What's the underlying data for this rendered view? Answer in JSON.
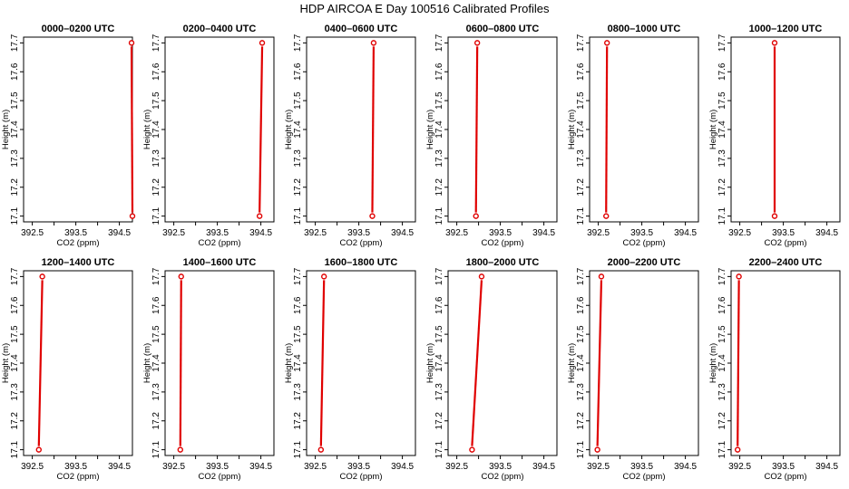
{
  "figure": {
    "title": "HDP AIRCOA E  Day 100516  Calibrated Profiles"
  },
  "chart_data": [
    {
      "type": "line",
      "title": "0000–0200 UTC",
      "xlabel": "CO2 (ppm)",
      "ylabel": "Height (m)",
      "xlim": [
        392.3,
        394.8
      ],
      "ylim": [
        17.08,
        17.72
      ],
      "xticks": [
        "392.5",
        "393.5",
        "394.5"
      ],
      "yticks": [
        "17.1",
        "17.2",
        "17.3",
        "17.4",
        "17.5",
        "17.6",
        "17.7"
      ],
      "series": [
        {
          "x": [
            394.8,
            394.78
          ],
          "y": [
            17.1,
            17.7
          ]
        }
      ]
    },
    {
      "type": "line",
      "title": "0200–0400 UTC",
      "xlabel": "CO2 (ppm)",
      "ylabel": "Height (m)",
      "xlim": [
        392.3,
        394.8
      ],
      "ylim": [
        17.08,
        17.72
      ],
      "xticks": [
        "392.5",
        "393.5",
        "394.5"
      ],
      "yticks": [
        "17.1",
        "17.2",
        "17.3",
        "17.4",
        "17.5",
        "17.6",
        "17.7"
      ],
      "series": [
        {
          "x": [
            394.47,
            394.53
          ],
          "y": [
            17.1,
            17.7
          ]
        }
      ]
    },
    {
      "type": "line",
      "title": "0400–0600 UTC",
      "xlabel": "CO2 (ppm)",
      "ylabel": "Height (m)",
      "xlim": [
        392.3,
        394.8
      ],
      "ylim": [
        17.08,
        17.72
      ],
      "xticks": [
        "392.5",
        "393.5",
        "394.5"
      ],
      "yticks": [
        "17.1",
        "17.2",
        "17.3",
        "17.4",
        "17.5",
        "17.6",
        "17.7"
      ],
      "series": [
        {
          "x": [
            393.81,
            393.84
          ],
          "y": [
            17.1,
            17.7
          ]
        }
      ]
    },
    {
      "type": "line",
      "title": "0600–0800 UTC",
      "xlabel": "CO2 (ppm)",
      "ylabel": "Height (m)",
      "xlim": [
        392.3,
        394.8
      ],
      "ylim": [
        17.08,
        17.72
      ],
      "xticks": [
        "392.5",
        "393.5",
        "394.5"
      ],
      "yticks": [
        "17.1",
        "17.2",
        "17.3",
        "17.4",
        "17.5",
        "17.6",
        "17.7"
      ],
      "series": [
        {
          "x": [
            392.94,
            392.97
          ],
          "y": [
            17.1,
            17.7
          ]
        }
      ]
    },
    {
      "type": "line",
      "title": "0800–1000 UTC",
      "xlabel": "CO2 (ppm)",
      "ylabel": "Height (m)",
      "xlim": [
        392.3,
        394.8
      ],
      "ylim": [
        17.08,
        17.72
      ],
      "xticks": [
        "392.5",
        "393.5",
        "394.5"
      ],
      "yticks": [
        "17.1",
        "17.2",
        "17.3",
        "17.4",
        "17.5",
        "17.6",
        "17.7"
      ],
      "series": [
        {
          "x": [
            392.68,
            392.7
          ],
          "y": [
            17.1,
            17.7
          ]
        }
      ]
    },
    {
      "type": "line",
      "title": "1000–1200 UTC",
      "xlabel": "CO2 (ppm)",
      "ylabel": "Height (m)",
      "xlim": [
        392.3,
        394.8
      ],
      "ylim": [
        17.08,
        17.72
      ],
      "xticks": [
        "392.5",
        "393.5",
        "394.5"
      ],
      "yticks": [
        "17.1",
        "17.2",
        "17.3",
        "17.4",
        "17.5",
        "17.6",
        "17.7"
      ],
      "series": [
        {
          "x": [
            393.3,
            393.3
          ],
          "y": [
            17.1,
            17.7
          ]
        }
      ]
    },
    {
      "type": "line",
      "title": "1200–1400 UTC",
      "xlabel": "CO2 (ppm)",
      "ylabel": "Height (m)",
      "xlim": [
        392.3,
        394.8
      ],
      "ylim": [
        17.08,
        17.72
      ],
      "xticks": [
        "392.5",
        "393.5",
        "394.5"
      ],
      "yticks": [
        "17.1",
        "17.2",
        "17.3",
        "17.4",
        "17.5",
        "17.6",
        "17.7"
      ],
      "series": [
        {
          "x": [
            392.65,
            392.73
          ],
          "y": [
            17.1,
            17.7
          ]
        }
      ]
    },
    {
      "type": "line",
      "title": "1400–1600 UTC",
      "xlabel": "CO2 (ppm)",
      "ylabel": "Height (m)",
      "xlim": [
        392.3,
        394.8
      ],
      "ylim": [
        17.08,
        17.72
      ],
      "xticks": [
        "392.5",
        "393.5",
        "394.5"
      ],
      "yticks": [
        "17.1",
        "17.2",
        "17.3",
        "17.4",
        "17.5",
        "17.6",
        "17.7"
      ],
      "series": [
        {
          "x": [
            392.65,
            392.67
          ],
          "y": [
            17.1,
            17.7
          ]
        }
      ]
    },
    {
      "type": "line",
      "title": "1600–1800 UTC",
      "xlabel": "CO2 (ppm)",
      "ylabel": "Height (m)",
      "xlim": [
        392.3,
        394.8
      ],
      "ylim": [
        17.08,
        17.72
      ],
      "xticks": [
        "392.5",
        "393.5",
        "394.5"
      ],
      "yticks": [
        "17.1",
        "17.2",
        "17.3",
        "17.4",
        "17.5",
        "17.6",
        "17.7"
      ],
      "series": [
        {
          "x": [
            392.63,
            392.7
          ],
          "y": [
            17.1,
            17.7
          ]
        }
      ]
    },
    {
      "type": "line",
      "title": "1800–2000 UTC",
      "xlabel": "CO2 (ppm)",
      "ylabel": "Height (m)",
      "xlim": [
        392.3,
        394.8
      ],
      "ylim": [
        17.08,
        17.72
      ],
      "xticks": [
        "392.5",
        "393.5",
        "394.5"
      ],
      "yticks": [
        "17.1",
        "17.2",
        "17.3",
        "17.4",
        "17.5",
        "17.6",
        "17.7"
      ],
      "series": [
        {
          "x": [
            392.85,
            393.07
          ],
          "y": [
            17.1,
            17.7
          ]
        }
      ]
    },
    {
      "type": "line",
      "title": "2000–2200 UTC",
      "xlabel": "CO2 (ppm)",
      "ylabel": "Height (m)",
      "xlim": [
        392.3,
        394.8
      ],
      "ylim": [
        17.08,
        17.72
      ],
      "xticks": [
        "392.5",
        "393.5",
        "394.5"
      ],
      "yticks": [
        "17.1",
        "17.2",
        "17.3",
        "17.4",
        "17.5",
        "17.6",
        "17.7"
      ],
      "series": [
        {
          "x": [
            392.48,
            392.57
          ],
          "y": [
            17.1,
            17.7
          ]
        }
      ]
    },
    {
      "type": "line",
      "title": "2200–2400 UTC",
      "xlabel": "CO2 (ppm)",
      "ylabel": "Height (m)",
      "xlim": [
        392.3,
        394.8
      ],
      "ylim": [
        17.08,
        17.72
      ],
      "xticks": [
        "392.5",
        "393.5",
        "394.5"
      ],
      "yticks": [
        "17.1",
        "17.2",
        "17.3",
        "17.4",
        "17.5",
        "17.6",
        "17.7"
      ],
      "series": [
        {
          "x": [
            392.45,
            392.48
          ],
          "y": [
            17.1,
            17.7
          ]
        }
      ]
    }
  ]
}
